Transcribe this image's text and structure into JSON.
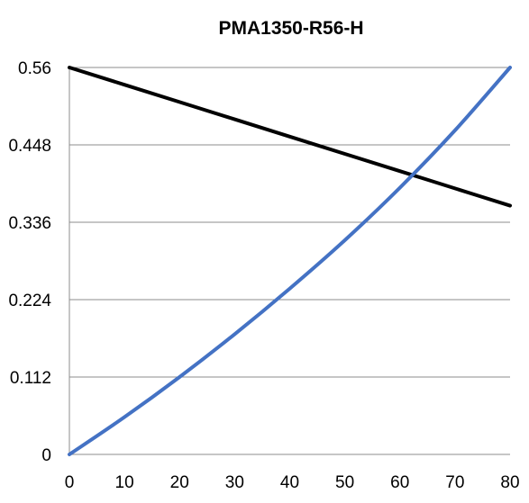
{
  "chart_data": {
    "type": "line",
    "title": "PMA1350-R56-H",
    "xlabel": "",
    "ylabel": "",
    "xlim": [
      0,
      80
    ],
    "ylim": [
      0,
      0.56
    ],
    "x_ticks": [
      "0",
      "10",
      "20",
      "30",
      "40",
      "50",
      "60",
      "70",
      "80"
    ],
    "y_ticks": [
      "0",
      "0.112",
      "0.224",
      "0.336",
      "0.448",
      "0.56"
    ],
    "grid": true,
    "legend": "none",
    "series": [
      {
        "color": "#000000",
        "x": [
          0,
          10,
          20,
          30,
          40,
          50,
          60,
          70,
          80
        ],
        "y": [
          0.56,
          0.535,
          0.51,
          0.485,
          0.46,
          0.435,
          0.41,
          0.385,
          0.36
        ]
      },
      {
        "color": "#4472c4",
        "x": [
          0,
          10,
          20,
          30,
          40,
          50,
          60,
          70,
          80
        ],
        "y": [
          0,
          0.054,
          0.112,
          0.174,
          0.24,
          0.31,
          0.386,
          0.469,
          0.56
        ]
      }
    ]
  }
}
